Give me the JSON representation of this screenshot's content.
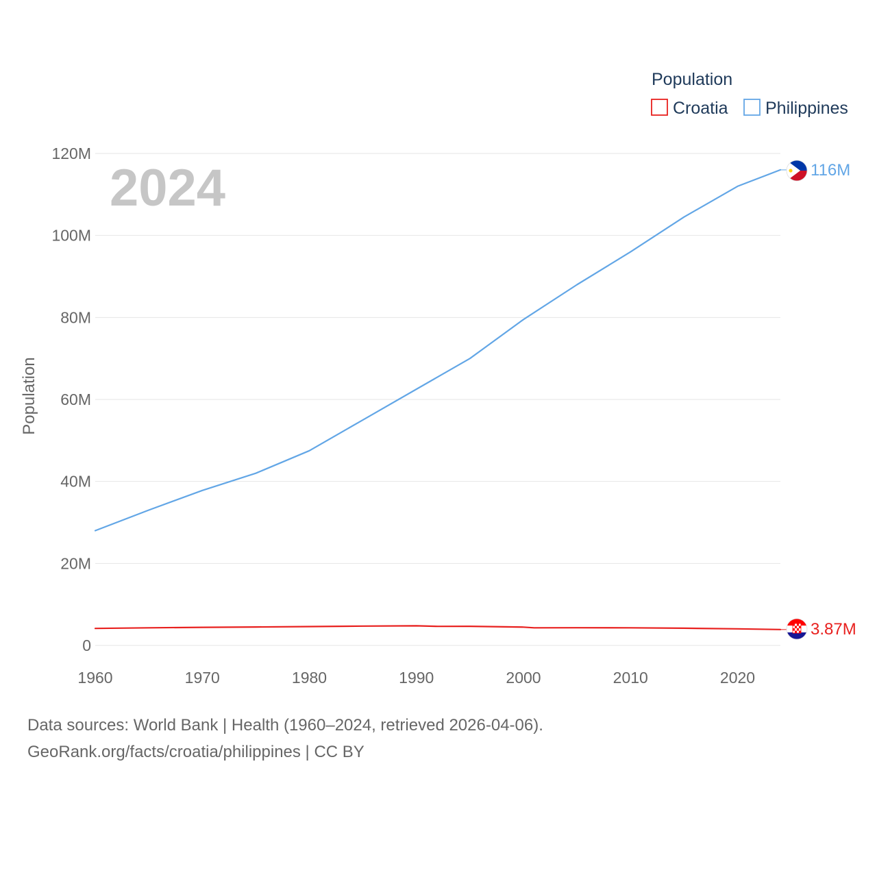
{
  "chart_data": {
    "type": "line",
    "watermark_year": "2024",
    "ylabel": "Population",
    "xlabel": "",
    "xlim": [
      1960,
      2024
    ],
    "ylim": [
      0,
      120000000
    ],
    "x_ticks": [
      1960,
      1970,
      1980,
      1990,
      2000,
      2010,
      2020
    ],
    "x_tick_labels": [
      "1960",
      "1970",
      "1980",
      "1990",
      "2000",
      "2010",
      "2020"
    ],
    "y_ticks": [
      0,
      20000000,
      40000000,
      60000000,
      80000000,
      100000000,
      120000000
    ],
    "y_tick_labels": [
      "0",
      "20M",
      "40M",
      "60M",
      "80M",
      "100M",
      "120M"
    ],
    "grid": true,
    "legend": {
      "title": "Population",
      "position": "top-right",
      "entries": [
        "Croatia",
        "Philippines"
      ]
    },
    "series": [
      {
        "name": "Croatia",
        "color": "#e8201e",
        "end_label": "3.87M",
        "flag": "croatia-flag",
        "x": [
          1960,
          1965,
          1970,
          1975,
          1980,
          1985,
          1990,
          1992,
          1995,
          2000,
          2001,
          2005,
          2010,
          2015,
          2020,
          2024
        ],
        "y": [
          4140000,
          4300000,
          4410000,
          4490000,
          4600000,
          4720000,
          4780000,
          4640000,
          4670000,
          4470000,
          4300000,
          4310000,
          4300000,
          4200000,
          4050000,
          3870000
        ]
      },
      {
        "name": "Philippines",
        "color": "#62a6e6",
        "end_label": "116M",
        "flag": "philippines-flag",
        "x": [
          1960,
          1965,
          1970,
          1975,
          1980,
          1985,
          1990,
          1995,
          2000,
          2005,
          2010,
          2015,
          2020,
          2024
        ],
        "y": [
          28000000,
          33000000,
          37800000,
          42000000,
          47500000,
          55000000,
          62500000,
          70000000,
          79500000,
          88000000,
          96000000,
          104500000,
          112000000,
          116000000
        ]
      }
    ]
  },
  "footer": {
    "source_line": "Data sources: World Bank | Health (1960–2024, retrieved 2026-04-06).",
    "credit_line": "GeoRank.org/facts/croatia/philippines | CC BY"
  }
}
